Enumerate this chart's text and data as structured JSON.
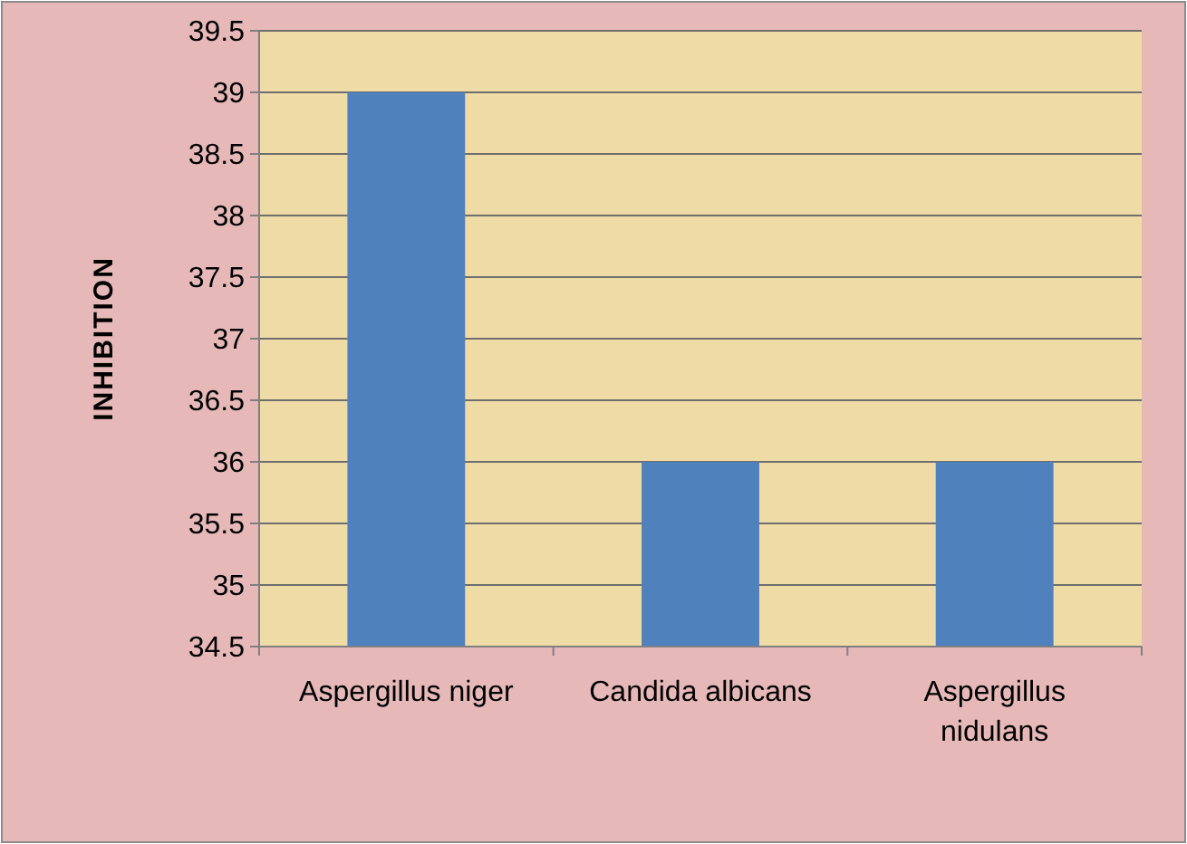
{
  "chart_data": {
    "type": "bar",
    "ylabel": "INHIBITION",
    "categories": [
      "Aspergillus niger",
      "Candida albicans",
      "Aspergillus nidulans"
    ],
    "values": [
      39,
      36,
      36
    ],
    "color": "#4f81bd",
    "ylim": [
      34.5,
      39.5
    ],
    "yticks": [
      34.5,
      35,
      35.5,
      36,
      36.5,
      37,
      37.5,
      38,
      38.5,
      39,
      39.5
    ],
    "grid": "y"
  }
}
